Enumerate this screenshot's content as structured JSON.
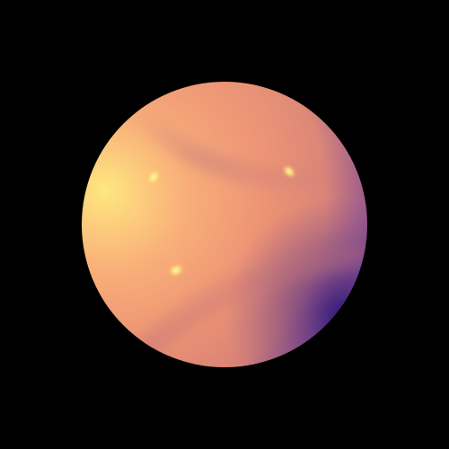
{
  "scene": {
    "background_color": "#000000",
    "object": "sphere",
    "colors": {
      "warm_light": "#FFE07A",
      "peach": "#F8A272",
      "coral": "#E98A72",
      "mauve": "#C77A82",
      "deep_violet": "#4B2A86",
      "indigo_shadow": "#28157A",
      "specular": "#FFF3A6"
    },
    "highlights": [
      "specular-highlight-left",
      "specular-highlight-right",
      "specular-highlight-bottom"
    ],
    "surface_features": [
      "seam-ridge-upper",
      "seam-ridge-lower"
    ]
  }
}
